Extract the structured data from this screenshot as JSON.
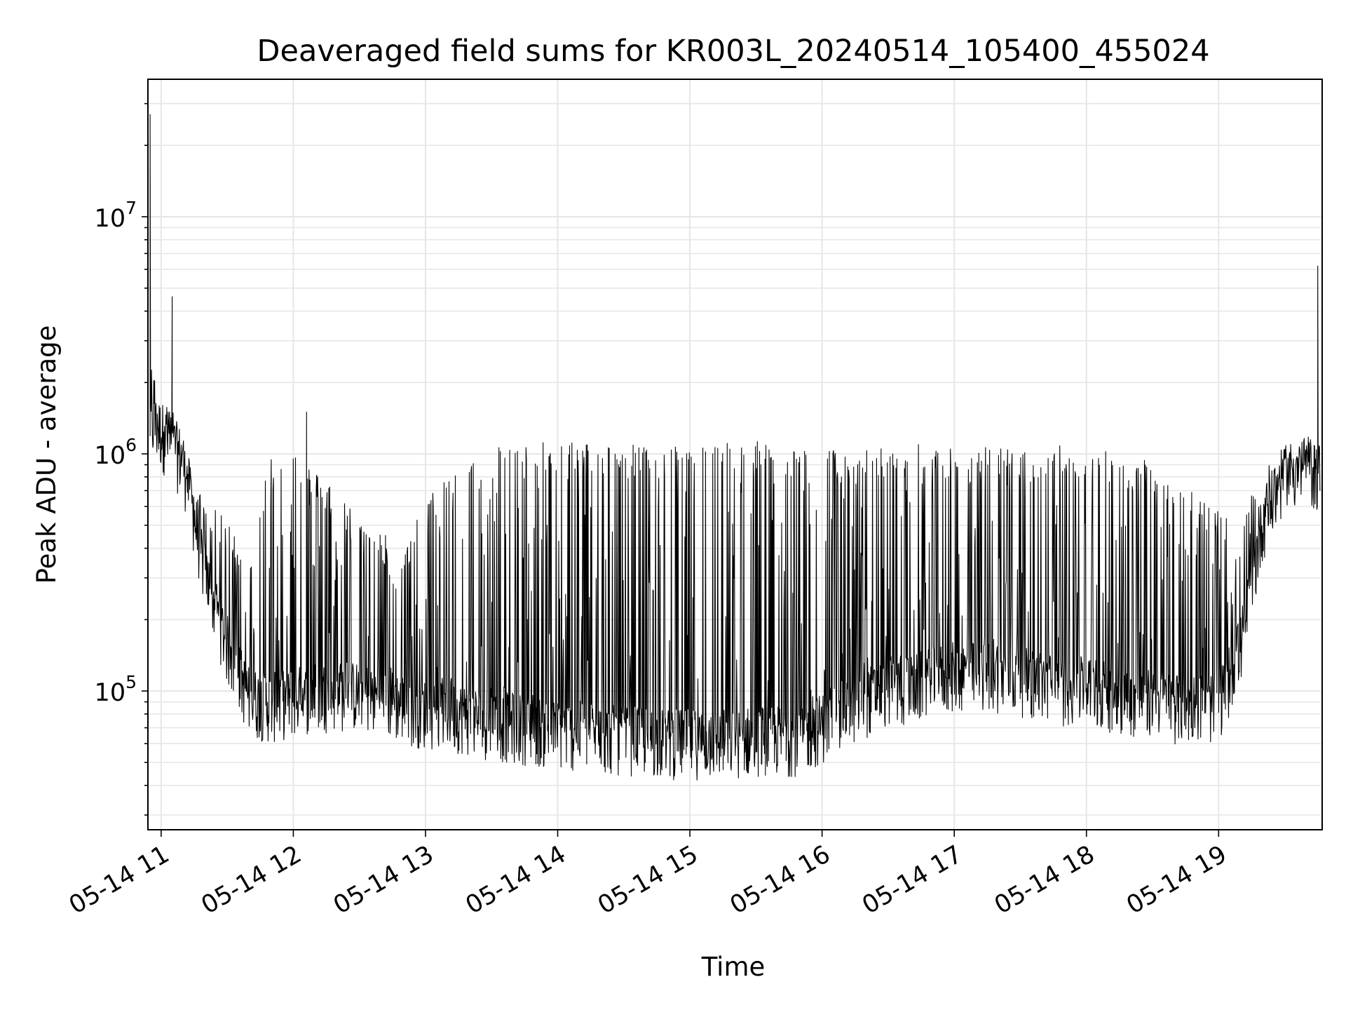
{
  "chart_data": {
    "type": "line",
    "title": "Deaveraged field sums for KR003L_20240514_105400_455024",
    "xlabel": "Time",
    "ylabel": "Peak ADU - average",
    "yscale": "log",
    "ylim": [
      26000,
      38000000
    ],
    "xlim": [
      "2024-05-14 10:54",
      "2024-05-14 19:47"
    ],
    "grid": true,
    "line_color": "#000000",
    "grid_color": "#e6e6e6",
    "x_ticks": [
      {
        "value": "2024-05-14 11:00",
        "label": "05-14 11"
      },
      {
        "value": "2024-05-14 12:00",
        "label": "05-14 12"
      },
      {
        "value": "2024-05-14 13:00",
        "label": "05-14 13"
      },
      {
        "value": "2024-05-14 14:00",
        "label": "05-14 14"
      },
      {
        "value": "2024-05-14 15:00",
        "label": "05-14 15"
      },
      {
        "value": "2024-05-14 16:00",
        "label": "05-14 16"
      },
      {
        "value": "2024-05-14 17:00",
        "label": "05-14 17"
      },
      {
        "value": "2024-05-14 18:00",
        "label": "05-14 18"
      },
      {
        "value": "2024-05-14 19:00",
        "label": "05-14 19"
      }
    ],
    "y_ticks": [
      {
        "value": 100000,
        "base": "10",
        "exp": "5"
      },
      {
        "value": 1000000,
        "base": "10",
        "exp": "6"
      },
      {
        "value": 10000000,
        "base": "10",
        "exp": "7"
      }
    ],
    "series": [
      {
        "x": [
          "2024-05-14 10:55",
          "2024-05-14 11:00",
          "2024-05-14 11:10",
          "2024-05-14 11:20",
          "2024-05-14 11:30",
          "2024-05-14 11:40",
          "2024-05-14 11:50",
          "2024-05-14 12:00",
          "2024-05-14 12:10",
          "2024-05-14 12:20",
          "2024-05-14 12:30",
          "2024-05-14 12:40",
          "2024-05-14 12:50",
          "2024-05-14 13:00",
          "2024-05-14 13:10",
          "2024-05-14 13:20",
          "2024-05-14 13:30",
          "2024-05-14 13:40",
          "2024-05-14 13:50",
          "2024-05-14 14:00",
          "2024-05-14 14:10",
          "2024-05-14 14:20",
          "2024-05-14 14:30",
          "2024-05-14 14:40",
          "2024-05-14 14:50",
          "2024-05-14 15:00",
          "2024-05-14 15:10",
          "2024-05-14 15:20",
          "2024-05-14 15:30",
          "2024-05-14 15:40",
          "2024-05-14 15:50",
          "2024-05-14 16:00",
          "2024-05-14 16:10",
          "2024-05-14 16:20",
          "2024-05-14 16:30",
          "2024-05-14 16:40",
          "2024-05-14 16:50",
          "2024-05-14 17:00",
          "2024-05-14 17:10",
          "2024-05-14 17:20",
          "2024-05-14 17:30",
          "2024-05-14 17:40",
          "2024-05-14 17:50",
          "2024-05-14 18:00",
          "2024-05-14 18:10",
          "2024-05-14 18:20",
          "2024-05-14 18:30",
          "2024-05-14 18:40",
          "2024-05-14 18:50",
          "2024-05-14 19:00",
          "2024-05-14 19:10",
          "2024-05-14 19:20",
          "2024-05-14 19:30",
          "2024-05-14 19:40",
          "2024-05-14 19:46"
        ],
        "base": [
          1300000,
          1200000,
          900000,
          300000,
          150000,
          90000,
          85000,
          90000,
          95000,
          95000,
          95000,
          90000,
          85000,
          80000,
          80000,
          75000,
          72000,
          70000,
          68000,
          65000,
          65000,
          63000,
          62000,
          62000,
          60000,
          60000,
          60000,
          60000,
          62000,
          62000,
          62000,
          70000,
          80000,
          90000,
          100000,
          100000,
          110000,
          115000,
          115000,
          115000,
          110000,
          105000,
          100000,
          100000,
          95000,
          90000,
          90000,
          85000,
          85000,
          85000,
          150000,
          500000,
          800000,
          850000,
          800000
        ],
        "upper": [
          2500000,
          2000000,
          1100000,
          600000,
          500000,
          400000,
          1000000,
          1050000,
          800000,
          700000,
          500000,
          450000,
          400000,
          600000,
          800000,
          1000000,
          1050000,
          1050000,
          1050000,
          1100000,
          1100000,
          1050000,
          1050000,
          1050000,
          1050000,
          1050000,
          1050000,
          1100000,
          1100000,
          1050000,
          1050000,
          1000000,
          1000000,
          1000000,
          1050000,
          1050000,
          1050000,
          1050000,
          1000000,
          1050000,
          1000000,
          1000000,
          1050000,
          1000000,
          1000000,
          950000,
          900000,
          800000,
          650000,
          550000,
          450000,
          900000,
          1000000,
          1100000,
          1000000
        ],
        "peaks": [
          {
            "x": "2024-05-14 10:55",
            "value": 27000000
          },
          {
            "x": "2024-05-14 11:05",
            "value": 4600000
          },
          {
            "x": "2024-05-14 19:45",
            "value": 6200000
          },
          {
            "x": "2024-05-14 12:06",
            "value": 1500000
          }
        ]
      }
    ]
  }
}
